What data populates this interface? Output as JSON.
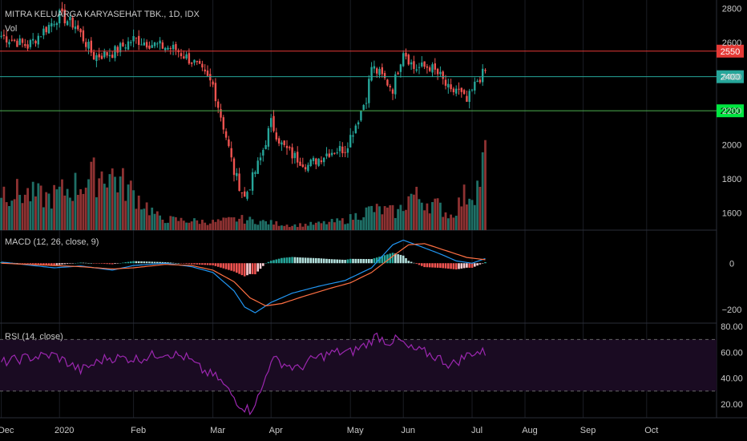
{
  "header": {
    "symbol_title": "MITRA KELUARGA KARYASEHAT TBK., 1D, IDX",
    "vol_label": "Vol"
  },
  "colors": {
    "background": "#000000",
    "up": "#26a69a",
    "down": "#ef5350",
    "vol_up": "#1f6f66",
    "vol_down": "#8e3232",
    "macd_line": "#2196f3",
    "signal_line": "#ff7043",
    "rsi_line": "#9c27b0",
    "rsi_band_fill": "#1a0b22",
    "text": "#c8c8c8",
    "grid": "#2a2e39",
    "resistance": "#e53935",
    "middle": "#26a69a",
    "support": "#4caf50"
  },
  "levels": [
    {
      "name": "resistance",
      "value": 2550,
      "label": "2550",
      "color": "#e53935",
      "label_bg": "#e53935",
      "label_fg": "#ffffff"
    },
    {
      "name": "middle",
      "value": 2400,
      "label": "2400",
      "color": "#26a69a",
      "label_bg": "#26a69a",
      "label_fg": "#ffffff"
    },
    {
      "name": "support",
      "value": 2200,
      "label": "2200",
      "color": "#4caf50",
      "label_bg": "#00e640",
      "label_fg": "#000000"
    }
  ],
  "price_axis": {
    "min": 1500,
    "max": 2850,
    "ticks": [
      "2800",
      "2600",
      "2400",
      "2200",
      "2000",
      "1800",
      "1600"
    ]
  },
  "macd_panel": {
    "label": "MACD (12, 26, close, 9)",
    "ticks": [
      "0",
      "−200"
    ],
    "min": -260,
    "max": 140
  },
  "rsi_panel": {
    "label": "RSI (14, close)",
    "ticks": [
      "80.00",
      "60.00",
      "40.00",
      "20.00"
    ],
    "min": 10,
    "max": 82,
    "upper": 70,
    "lower": 30
  },
  "time_axis": {
    "labels": [
      "Dec",
      "2020",
      "Feb",
      "Mar",
      "Apr",
      "May",
      "Jun",
      "Jul",
      "Aug",
      "Sep",
      "Oct"
    ],
    "positions": [
      0,
      22,
      50,
      80,
      102,
      132,
      152,
      178,
      198,
      220,
      244
    ]
  },
  "chart_data": {
    "type": "candlestick",
    "keypoints": {
      "close": [
        [
          0,
          2640
        ],
        [
          10,
          2580
        ],
        [
          22,
          2760
        ],
        [
          28,
          2700
        ],
        [
          35,
          2520
        ],
        [
          42,
          2540
        ],
        [
          50,
          2620
        ],
        [
          60,
          2580
        ],
        [
          66,
          2560
        ],
        [
          73,
          2480
        ],
        [
          80,
          2350
        ],
        [
          85,
          2050
        ],
        [
          88,
          1840
        ],
        [
          92,
          1690
        ],
        [
          98,
          1920
        ],
        [
          102,
          2130
        ],
        [
          106,
          2000
        ],
        [
          110,
          1940
        ],
        [
          116,
          1880
        ],
        [
          124,
          1960
        ],
        [
          130,
          1980
        ],
        [
          134,
          2120
        ],
        [
          138,
          2280
        ],
        [
          140,
          2460
        ],
        [
          144,
          2400
        ],
        [
          148,
          2330
        ],
        [
          152,
          2560
        ],
        [
          156,
          2450
        ],
        [
          162,
          2460
        ],
        [
          166,
          2400
        ],
        [
          170,
          2300
        ],
        [
          172,
          2330
        ],
        [
          176,
          2250
        ],
        [
          180,
          2380
        ],
        [
          183,
          2430
        ]
      ],
      "volume": [
        [
          0,
          50
        ],
        [
          18,
          40
        ],
        [
          30,
          58
        ],
        [
          40,
          74
        ],
        [
          50,
          46
        ],
        [
          60,
          14
        ],
        [
          70,
          12
        ],
        [
          80,
          10
        ],
        [
          90,
          14
        ],
        [
          100,
          10
        ],
        [
          110,
          6
        ],
        [
          120,
          8
        ],
        [
          130,
          12
        ],
        [
          140,
          26
        ],
        [
          150,
          22
        ],
        [
          155,
          44
        ],
        [
          165,
          30
        ],
        [
          170,
          18
        ],
        [
          175,
          42
        ],
        [
          180,
          54
        ],
        [
          183,
          90
        ]
      ],
      "macd": [
        [
          0,
          5
        ],
        [
          20,
          -20
        ],
        [
          30,
          -12
        ],
        [
          42,
          -30
        ],
        [
          50,
          -10
        ],
        [
          62,
          0
        ],
        [
          72,
          -15
        ],
        [
          80,
          -40
        ],
        [
          88,
          -120
        ],
        [
          92,
          -190
        ],
        [
          96,
          -215
        ],
        [
          102,
          -170
        ],
        [
          110,
          -130
        ],
        [
          120,
          -100
        ],
        [
          130,
          -75
        ],
        [
          140,
          -20
        ],
        [
          148,
          80
        ],
        [
          152,
          100
        ],
        [
          158,
          75
        ],
        [
          166,
          40
        ],
        [
          172,
          10
        ],
        [
          178,
          0
        ],
        [
          183,
          20
        ]
      ],
      "signal": [
        [
          0,
          0
        ],
        [
          20,
          -10
        ],
        [
          30,
          -15
        ],
        [
          42,
          -25
        ],
        [
          50,
          -20
        ],
        [
          62,
          -5
        ],
        [
          72,
          -10
        ],
        [
          80,
          -30
        ],
        [
          88,
          -80
        ],
        [
          94,
          -150
        ],
        [
          100,
          -185
        ],
        [
          106,
          -175
        ],
        [
          114,
          -145
        ],
        [
          124,
          -110
        ],
        [
          132,
          -85
        ],
        [
          140,
          -40
        ],
        [
          148,
          30
        ],
        [
          154,
          80
        ],
        [
          160,
          85
        ],
        [
          168,
          55
        ],
        [
          176,
          25
        ],
        [
          183,
          15
        ]
      ],
      "rsi": [
        [
          0,
          52
        ],
        [
          10,
          56
        ],
        [
          20,
          58
        ],
        [
          30,
          46
        ],
        [
          40,
          56
        ],
        [
          52,
          55
        ],
        [
          62,
          60
        ],
        [
          70,
          56
        ],
        [
          76,
          46
        ],
        [
          82,
          40
        ],
        [
          86,
          30
        ],
        [
          90,
          20
        ],
        [
          94,
          15
        ],
        [
          98,
          28
        ],
        [
          102,
          55
        ],
        [
          106,
          52
        ],
        [
          112,
          47
        ],
        [
          118,
          55
        ],
        [
          126,
          60
        ],
        [
          132,
          60
        ],
        [
          138,
          66
        ],
        [
          142,
          73
        ],
        [
          146,
          68
        ],
        [
          150,
          70
        ],
        [
          154,
          63
        ],
        [
          160,
          60
        ],
        [
          166,
          55
        ],
        [
          170,
          50
        ],
        [
          174,
          55
        ],
        [
          178,
          60
        ],
        [
          183,
          60
        ]
      ]
    }
  }
}
